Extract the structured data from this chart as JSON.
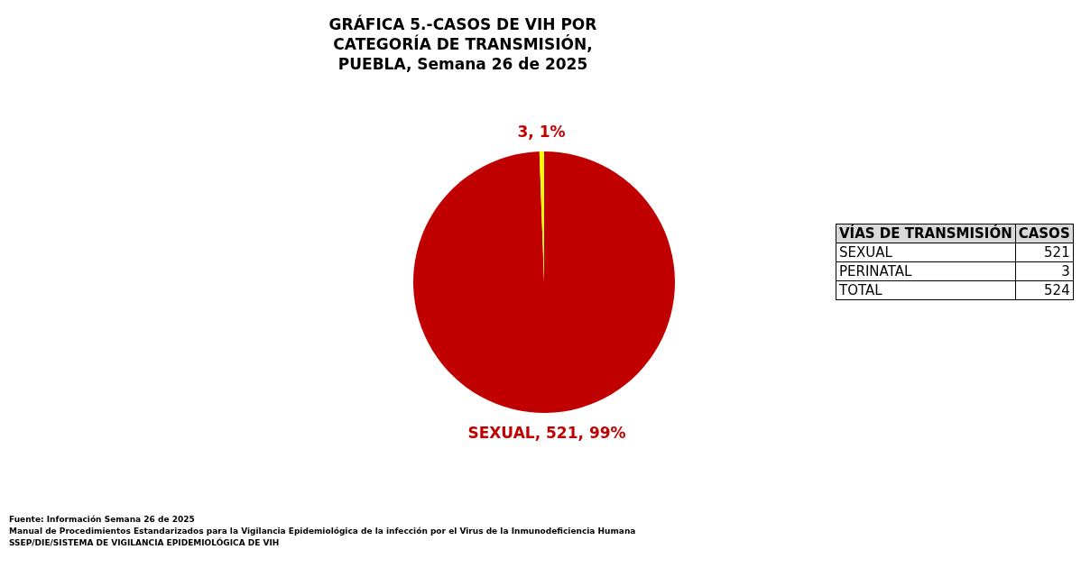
{
  "chart_data": {
    "type": "pie",
    "title": "GRÁFICA 5.-CASOS DE VIH POR CATEGORÍA DE TRANSMISIÓN, PUEBLA, Semana 26 de 2025",
    "categories": [
      null,
      null
    ],
    "values": [
      521,
      3
    ],
    "colors": [
      "#c00000",
      "#ffff00"
    ],
    "value_labels": [
      "SEXUAL, 521, 99%",
      "3, 1%"
    ],
    "legend": false,
    "annotations": [
      "VÍAS DE TRANSMISIÓN",
      "CASOS",
      "SEXUAL",
      "521",
      "PERINATAL",
      "3",
      "TOTAL",
      "524",
      "Fuente: Información Semana 26 de 2025",
      "Manual de Procedimientos Estandarizados para la Vigilancia Epidemiológica de la infección por el Virus de la Inmunodeficiencia Humana",
      "SSEP/DIE/SISTEMA DE VIGILANCIA EPIDEMIOLÓGICA DE VIH"
    ]
  }
}
